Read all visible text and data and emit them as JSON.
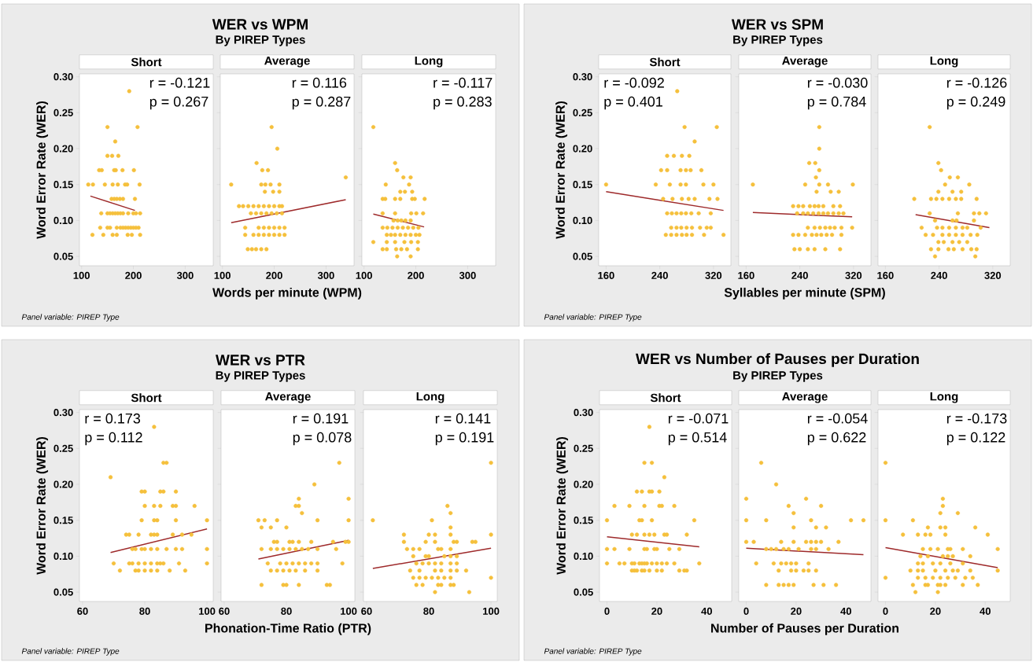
{
  "chart_data": [
    {
      "type": "scatter",
      "title": "Short",
      "ylabel": "Word Error Rate (WER)",
      "xlim": [
        96,
        354
      ],
      "ylim": [
        0.037,
        0.304
      ],
      "xticks": [
        100,
        200,
        300
      ],
      "yticks": [
        0.05,
        {
          "value": 0.1,
          "label": "0.10"
        },
        0.15,
        {
          "value": 0.2,
          "label": "0.20"
        },
        0.25,
        {
          "value": 0.3,
          "label": "0.30"
        }
      ],
      "annotations": [
        "r = -0.121",
        "p = 0.267",
        "WER vs WPM",
        "By PIREP Types",
        "Panel variable: PIREP Type"
      ],
      "series": [
        {
          "type": "scatter",
          "marker": "circle",
          "color": "#f5c03c",
          "x": [
            192,
            150,
            208,
            165,
            150,
            159,
            171,
            134,
            139,
            163,
            166,
            179,
            201,
            113,
            122,
            145,
            160,
            170,
            184,
            188,
            212,
            158,
            163,
            168,
            174,
            180,
            203,
            138,
            150,
            155,
            160,
            165,
            170,
            175,
            180,
            190,
            200,
            205,
            213,
            136,
            150,
            155,
            168,
            175,
            180,
            185,
            190,
            195,
            200,
            205,
            210,
            121,
            142,
            160,
            168,
            189,
            197,
            213
          ],
          "values": [
            0.28,
            0.23,
            0.23,
            0.21,
            0.19,
            0.19,
            0.19,
            0.17,
            0.17,
            0.17,
            0.17,
            0.17,
            0.17,
            0.15,
            0.15,
            0.15,
            0.15,
            0.15,
            0.15,
            0.15,
            0.15,
            0.13,
            0.13,
            0.13,
            0.13,
            0.13,
            0.13,
            0.11,
            0.11,
            0.11,
            0.11,
            0.11,
            0.11,
            0.11,
            0.11,
            0.11,
            0.11,
            0.11,
            0.11,
            0.09,
            0.09,
            0.09,
            0.09,
            0.09,
            0.09,
            0.09,
            0.09,
            0.09,
            0.09,
            0.09,
            0.09,
            0.08,
            0.08,
            0.08,
            0.08,
            0.08,
            0.08,
            0.08
          ]
        },
        {
          "type": "line",
          "color": "#9e2a2b",
          "x": [
            117,
            203
          ],
          "values": [
            0.134,
            0.114
          ]
        }
      ]
    },
    {
      "type": "scatter",
      "title": "Average",
      "xlabel": "Words per minute (WPM)",
      "tick_labels": "x",
      "xlim": [
        96,
        354
      ],
      "ylim": [
        0.037,
        0.304
      ],
      "xticks": [
        100,
        200,
        300
      ],
      "yticks": [
        {
          "value": 0.05,
          "label": null
        },
        {
          "value": 0.1,
          "label": null
        },
        {
          "value": 0.15,
          "label": null
        },
        {
          "value": 0.2,
          "label": null
        },
        {
          "value": 0.25,
          "label": null
        },
        {
          "value": 0.3,
          "label": null
        }
      ],
      "annotations": [
        "r = 0.116",
        "p = 0.287"
      ],
      "series": [
        {
          "type": "scatter",
          "marker": "circle",
          "color": "#f5c03c",
          "x": [
            195,
            206,
            166,
            177,
            188,
            338,
            117,
            175,
            183,
            193,
            210,
            182,
            198,
            210,
            132,
            140,
            150,
            160,
            170,
            180,
            190,
            200,
            210,
            215,
            155,
            165,
            175,
            185,
            195,
            205,
            215,
            144,
            170,
            180,
            190,
            200,
            210,
            220,
            144,
            160,
            170,
            180,
            190,
            200,
            210,
            220,
            149,
            157,
            165,
            175,
            185
          ],
          "values": [
            0.23,
            0.2,
            0.18,
            0.17,
            0.17,
            0.16,
            0.15,
            0.15,
            0.15,
            0.15,
            0.15,
            0.14,
            0.14,
            0.14,
            0.12,
            0.12,
            0.12,
            0.12,
            0.12,
            0.12,
            0.12,
            0.12,
            0.12,
            0.12,
            0.11,
            0.11,
            0.11,
            0.11,
            0.11,
            0.11,
            0.11,
            0.09,
            0.09,
            0.09,
            0.09,
            0.09,
            0.09,
            0.09,
            0.08,
            0.08,
            0.08,
            0.08,
            0.08,
            0.08,
            0.08,
            0.08,
            0.06,
            0.06,
            0.06,
            0.06,
            0.06
          ]
        },
        {
          "type": "line",
          "color": "#9e2a2b",
          "x": [
            117,
            338
          ],
          "values": [
            0.097,
            0.129
          ]
        }
      ]
    },
    {
      "type": "scatter",
      "title": "Long",
      "tick_labels": "x",
      "xlim": [
        96,
        354
      ],
      "ylim": [
        0.037,
        0.304
      ],
      "xticks": [
        100,
        200,
        300
      ],
      "yticks": [
        {
          "value": 0.05,
          "label": null
        },
        {
          "value": 0.1,
          "label": null
        },
        {
          "value": 0.15,
          "label": null
        },
        {
          "value": 0.2,
          "label": null
        },
        {
          "value": 0.25,
          "label": null
        },
        {
          "value": 0.3,
          "label": null
        }
      ],
      "annotations": [
        "r = -0.117",
        "p = 0.283"
      ],
      "series": [
        {
          "type": "scatter",
          "marker": "circle",
          "color": "#f5c03c",
          "x": [
            118,
            160,
            164,
            176,
            190,
            142,
            187,
            170,
            179,
            193,
            136,
            141,
            160,
            170,
            193,
            198,
            217,
            136,
            160,
            191,
            201,
            214,
            157,
            165,
            172,
            180,
            190,
            136,
            145,
            155,
            165,
            175,
            185,
            195,
            205,
            144,
            152,
            160,
            170,
            180,
            190,
            200,
            207,
            118,
            144,
            160,
            178,
            191,
            204,
            136,
            144,
            162,
            172,
            183,
            204,
            164,
            190
          ],
          "values": [
            0.23,
            0.18,
            0.17,
            0.16,
            0.16,
            0.15,
            0.15,
            0.14,
            0.14,
            0.14,
            0.13,
            0.13,
            0.13,
            0.13,
            0.13,
            0.13,
            0.13,
            0.11,
            0.11,
            0.11,
            0.11,
            0.11,
            0.1,
            0.1,
            0.1,
            0.1,
            0.1,
            0.09,
            0.09,
            0.09,
            0.09,
            0.09,
            0.09,
            0.09,
            0.09,
            0.08,
            0.08,
            0.08,
            0.08,
            0.08,
            0.08,
            0.08,
            0.08,
            0.07,
            0.07,
            0.07,
            0.07,
            0.07,
            0.07,
            0.06,
            0.06,
            0.06,
            0.06,
            0.06,
            0.06,
            0.05,
            0.05
          ]
        },
        {
          "type": "line",
          "color": "#9e2a2b",
          "x": [
            118,
            216
          ],
          "values": [
            0.109,
            0.091
          ]
        }
      ]
    },
    {
      "type": "scatter",
      "title": "Short",
      "ylabel": "Word Error Rate (WER)",
      "xlim": [
        149,
        346
      ],
      "ylim": [
        0.037,
        0.304
      ],
      "xticks": [
        160,
        240,
        320
      ],
      "yticks": [
        0.05,
        {
          "value": 0.1,
          "label": "0.10"
        },
        0.15,
        {
          "value": 0.2,
          "label": "0.20"
        },
        0.25,
        {
          "value": 0.3,
          "label": "0.30"
        }
      ],
      "annotations": [
        "r = -0.092",
        "p = 0.401",
        "WER vs SPM",
        "By PIREP Types",
        "Panel variable: PIREP Type"
      ],
      "series": [
        {
          "type": "scatter",
          "marker": "circle",
          "color": "#f5c03c",
          "x": [
            266,
            277,
            325,
            292,
            251,
            261,
            273,
            284,
            242,
            251,
            271,
            279,
            286,
            302,
            160,
            234,
            255,
            271,
            279,
            305,
            320,
            245,
            259,
            273,
            283,
            292,
            314,
            326,
            251,
            258,
            265,
            272,
            279,
            287,
            298,
            316,
            257,
            265,
            272,
            280,
            288,
            300,
            310,
            316,
            249,
            257,
            265,
            273,
            280,
            288,
            306,
            335
          ],
          "values": [
            0.28,
            0.23,
            0.23,
            0.21,
            0.19,
            0.19,
            0.19,
            0.19,
            0.17,
            0.17,
            0.17,
            0.17,
            0.17,
            0.17,
            0.15,
            0.15,
            0.15,
            0.15,
            0.15,
            0.15,
            0.15,
            0.13,
            0.13,
            0.13,
            0.13,
            0.13,
            0.13,
            0.13,
            0.11,
            0.11,
            0.11,
            0.11,
            0.11,
            0.11,
            0.11,
            0.11,
            0.09,
            0.09,
            0.09,
            0.09,
            0.09,
            0.09,
            0.09,
            0.09,
            0.08,
            0.08,
            0.08,
            0.08,
            0.08,
            0.08,
            0.08,
            0.08
          ]
        },
        {
          "type": "line",
          "color": "#9e2a2b",
          "x": [
            160,
            335
          ],
          "values": [
            0.14,
            0.114
          ]
        }
      ]
    },
    {
      "type": "scatter",
      "title": "Average",
      "xlabel": "Syllables per minute (SPM)",
      "tick_labels": "x",
      "xlim": [
        149,
        346
      ],
      "ylim": [
        0.037,
        0.304
      ],
      "xticks": [
        160,
        240,
        320
      ],
      "yticks": [
        {
          "value": 0.05,
          "label": null
        },
        {
          "value": 0.1,
          "label": null
        },
        {
          "value": 0.15,
          "label": null
        },
        {
          "value": 0.2,
          "label": null
        },
        {
          "value": 0.25,
          "label": null
        },
        {
          "value": 0.3,
          "label": null
        }
      ],
      "annotations": [
        "r = -0.030",
        "p = 0.784"
      ],
      "series": [
        {
          "type": "scatter",
          "marker": "circle",
          "color": "#f5c03c",
          "x": [
            269,
            269,
            254,
            263,
            269,
            264,
            170,
            248,
            269,
            282,
            319,
            265,
            286,
            298,
            230,
            238,
            245,
            255,
            262,
            268,
            275,
            290,
            300,
            236,
            245,
            252,
            260,
            268,
            275,
            282,
            290,
            298,
            305,
            252,
            262,
            270,
            278,
            285,
            292,
            302,
            318,
            230,
            238,
            248,
            258,
            265,
            272,
            280,
            288,
            302,
            232,
            240,
            252,
            262,
            278,
            300
          ],
          "values": [
            0.23,
            0.2,
            0.18,
            0.18,
            0.17,
            0.16,
            0.15,
            0.15,
            0.15,
            0.15,
            0.15,
            0.14,
            0.14,
            0.14,
            0.12,
            0.12,
            0.12,
            0.12,
            0.12,
            0.12,
            0.12,
            0.12,
            0.12,
            0.11,
            0.11,
            0.11,
            0.11,
            0.11,
            0.11,
            0.11,
            0.11,
            0.11,
            0.11,
            0.09,
            0.09,
            0.09,
            0.09,
            0.09,
            0.09,
            0.09,
            0.09,
            0.08,
            0.08,
            0.08,
            0.08,
            0.08,
            0.08,
            0.08,
            0.08,
            0.08,
            0.06,
            0.06,
            0.06,
            0.06,
            0.06,
            0.06
          ]
        },
        {
          "type": "line",
          "color": "#9e2a2b",
          "x": [
            170,
            318
          ],
          "values": [
            0.111,
            0.105
          ]
        }
      ]
    },
    {
      "type": "scatter",
      "title": "Long",
      "tick_labels": "x",
      "xlim": [
        149,
        346
      ],
      "ylim": [
        0.037,
        0.304
      ],
      "xticks": [
        160,
        240,
        320
      ],
      "yticks": [
        {
          "value": 0.05,
          "label": null
        },
        {
          "value": 0.1,
          "label": null
        },
        {
          "value": 0.15,
          "label": null
        },
        {
          "value": 0.2,
          "label": null
        },
        {
          "value": 0.25,
          "label": null
        },
        {
          "value": 0.3,
          "label": null
        }
      ],
      "annotations": [
        "r = -0.126",
        "p = 0.249"
      ],
      "series": [
        {
          "type": "scatter",
          "marker": "circle",
          "color": "#f5c03c",
          "x": [
            226,
            239,
            243,
            256,
            268,
            249,
            285,
            239,
            260,
            273,
            203,
            228,
            236,
            245,
            255,
            265,
            273,
            296,
            226,
            268,
            292,
            300,
            310,
            234,
            260,
            266,
            292,
            214,
            237,
            245,
            255,
            265,
            275,
            282,
            302,
            220,
            231,
            245,
            255,
            265,
            275,
            287,
            297,
            239,
            247,
            260,
            270,
            282,
            228,
            239,
            254,
            262,
            275,
            288,
            296,
            234,
            294
          ],
          "values": [
            0.23,
            0.18,
            0.17,
            0.16,
            0.16,
            0.15,
            0.15,
            0.14,
            0.14,
            0.14,
            0.13,
            0.13,
            0.13,
            0.13,
            0.13,
            0.13,
            0.13,
            0.13,
            0.11,
            0.11,
            0.11,
            0.11,
            0.11,
            0.1,
            0.1,
            0.1,
            0.1,
            0.09,
            0.09,
            0.09,
            0.09,
            0.09,
            0.09,
            0.09,
            0.09,
            0.08,
            0.08,
            0.08,
            0.08,
            0.08,
            0.08,
            0.08,
            0.08,
            0.07,
            0.07,
            0.07,
            0.07,
            0.07,
            0.06,
            0.06,
            0.06,
            0.06,
            0.06,
            0.06,
            0.06,
            0.05,
            0.05
          ]
        },
        {
          "type": "line",
          "color": "#9e2a2b",
          "x": [
            205,
            315
          ],
          "values": [
            0.108,
            0.09
          ]
        }
      ]
    },
    {
      "type": "scatter",
      "title": "Short",
      "ylabel": "Word Error Rate (WER)",
      "xlim": [
        59,
        102
      ],
      "ylim": [
        0.037,
        0.304
      ],
      "xticks": [
        60,
        80,
        100
      ],
      "yticks": [
        0.05,
        {
          "value": 0.1,
          "label": "0.10"
        },
        0.15,
        {
          "value": 0.2,
          "label": "0.20"
        },
        0.25,
        {
          "value": 0.3,
          "label": "0.30"
        }
      ],
      "annotations": [
        "r = 0.173",
        "p = 0.112",
        "WER vs PTR",
        "By PIREP Types",
        "Panel variable: PIREP Type"
      ],
      "series": [
        {
          "type": "scatter",
          "marker": "circle",
          "color": "#f5c03c",
          "x": [
            83,
            86,
            87,
            69,
            79,
            80,
            85,
            86,
            90,
            80,
            83,
            85,
            89,
            90,
            96,
            79,
            83,
            84,
            90,
            100,
            74,
            75,
            78,
            82,
            83,
            84,
            89,
            92,
            95,
            76,
            77,
            79,
            80,
            82,
            84,
            87,
            90,
            92,
            100,
            70,
            75,
            76,
            78,
            80,
            82,
            84,
            85,
            86,
            91,
            100,
            72,
            77,
            78,
            80,
            82,
            84,
            88,
            93
          ],
          "values": [
            0.28,
            0.23,
            0.23,
            0.21,
            0.19,
            0.19,
            0.19,
            0.19,
            0.19,
            0.17,
            0.17,
            0.17,
            0.17,
            0.17,
            0.17,
            0.15,
            0.15,
            0.15,
            0.15,
            0.15,
            0.13,
            0.13,
            0.13,
            0.13,
            0.13,
            0.13,
            0.13,
            0.13,
            0.13,
            0.11,
            0.11,
            0.11,
            0.11,
            0.11,
            0.11,
            0.11,
            0.11,
            0.11,
            0.11,
            0.09,
            0.09,
            0.09,
            0.09,
            0.09,
            0.09,
            0.09,
            0.09,
            0.09,
            0.09,
            0.09,
            0.08,
            0.08,
            0.08,
            0.08,
            0.08,
            0.08,
            0.08,
            0.08
          ]
        },
        {
          "type": "line",
          "color": "#9e2a2b",
          "x": [
            69,
            100
          ],
          "values": [
            0.105,
            0.138
          ]
        }
      ]
    },
    {
      "type": "scatter",
      "title": "Average",
      "xlabel": "Phonation-Time Ratio (PTR)",
      "tick_labels": "x",
      "xlim": [
        59,
        102
      ],
      "ylim": [
        0.037,
        0.304
      ],
      "xticks": [
        60,
        80,
        100
      ],
      "yticks": [
        {
          "value": 0.05,
          "label": null
        },
        {
          "value": 0.1,
          "label": null
        },
        {
          "value": 0.15,
          "label": null
        },
        {
          "value": 0.2,
          "label": null
        },
        {
          "value": 0.25,
          "label": null
        },
        {
          "value": 0.3,
          "label": null
        }
      ],
      "annotations": [
        "r = 0.191",
        "p = 0.078"
      ],
      "series": [
        {
          "type": "scatter",
          "marker": "circle",
          "color": "#f5c03c",
          "x": [
            97,
            89,
            84,
            100,
            83,
            84,
            85,
            71,
            73,
            77,
            90,
            100,
            72,
            75,
            80,
            76,
            77,
            81,
            82,
            84,
            88,
            95,
            99,
            100,
            72,
            75,
            77,
            79,
            81,
            83,
            85,
            87,
            90,
            96,
            74,
            78,
            80,
            82,
            84,
            86,
            88,
            90,
            98,
            75,
            77,
            79,
            81,
            83,
            86,
            90,
            72,
            79,
            80,
            84,
            93,
            94
          ],
          "values": [
            0.23,
            0.2,
            0.18,
            0.18,
            0.17,
            0.17,
            0.16,
            0.15,
            0.15,
            0.15,
            0.15,
            0.15,
            0.14,
            0.14,
            0.14,
            0.12,
            0.12,
            0.12,
            0.12,
            0.12,
            0.12,
            0.12,
            0.12,
            0.12,
            0.11,
            0.11,
            0.11,
            0.11,
            0.11,
            0.11,
            0.11,
            0.11,
            0.11,
            0.11,
            0.09,
            0.09,
            0.09,
            0.09,
            0.09,
            0.09,
            0.09,
            0.09,
            0.09,
            0.08,
            0.08,
            0.08,
            0.08,
            0.08,
            0.08,
            0.08,
            0.06,
            0.06,
            0.06,
            0.06,
            0.06,
            0.06
          ]
        },
        {
          "type": "line",
          "color": "#9e2a2b",
          "x": [
            71,
            100
          ],
          "values": [
            0.096,
            0.122
          ]
        }
      ]
    },
    {
      "type": "scatter",
      "title": "Long",
      "tick_labels": "x",
      "xlim": [
        59,
        102
      ],
      "ylim": [
        0.037,
        0.304
      ],
      "xticks": [
        60,
        80,
        100
      ],
      "yticks": [
        {
          "value": 0.05,
          "label": null
        },
        {
          "value": 0.1,
          "label": null
        },
        {
          "value": 0.15,
          "label": null
        },
        {
          "value": 0.2,
          "label": null
        },
        {
          "value": 0.25,
          "label": null
        },
        {
          "value": 0.3,
          "label": null
        }
      ],
      "annotations": [
        "r = 0.141",
        "p = 0.191"
      ],
      "series": [
        {
          "type": "scatter",
          "marker": "circle",
          "color": "#f5c03c",
          "x": [
            100,
            86,
            87,
            62,
            81,
            87,
            72,
            80,
            82,
            87,
            100,
            72,
            79,
            82,
            88,
            89,
            94,
            95,
            73,
            75,
            77,
            83,
            84,
            87,
            75,
            79,
            80,
            85,
            87,
            89,
            76,
            78,
            80,
            82,
            84,
            87,
            89,
            74,
            77,
            82,
            84,
            87,
            89,
            92,
            75,
            77,
            79,
            81,
            83,
            85,
            87,
            100,
            76,
            78,
            83,
            84,
            87,
            88,
            82,
            93
          ],
          "values": [
            0.23,
            0.17,
            0.16,
            0.15,
            0.15,
            0.14,
            0.13,
            0.13,
            0.13,
            0.13,
            0.13,
            0.12,
            0.12,
            0.12,
            0.12,
            0.12,
            0.12,
            0.12,
            0.11,
            0.11,
            0.11,
            0.11,
            0.11,
            0.11,
            0.1,
            0.1,
            0.1,
            0.1,
            0.1,
            0.1,
            0.09,
            0.09,
            0.09,
            0.09,
            0.09,
            0.09,
            0.09,
            0.08,
            0.08,
            0.08,
            0.08,
            0.08,
            0.08,
            0.08,
            0.07,
            0.07,
            0.07,
            0.07,
            0.07,
            0.07,
            0.07,
            0.07,
            0.06,
            0.06,
            0.06,
            0.06,
            0.06,
            0.06,
            0.05,
            0.05
          ]
        },
        {
          "type": "line",
          "color": "#9e2a2b",
          "x": [
            62,
            100
          ],
          "values": [
            0.083,
            0.111
          ]
        }
      ]
    },
    {
      "type": "scatter",
      "title": "Short",
      "ylabel": "Word Error Rate (WER)",
      "xlim": [
        -3,
        50
      ],
      "ylim": [
        0.037,
        0.304
      ],
      "xticks": [
        0,
        20,
        40
      ],
      "yticks": [
        0.05,
        {
          "value": 0.1,
          "label": "0.10"
        },
        0.15,
        {
          "value": 0.2,
          "label": "0.20"
        },
        0.25,
        {
          "value": 0.3,
          "label": "0.30"
        }
      ],
      "annotations": [
        "r = -0.071",
        "p = 0.514",
        "WER vs Number of Pauses per Duration",
        "By PIREP Types",
        "Panel variable: PIREP Type"
      ],
      "series": [
        {
          "type": "scatter",
          "marker": "circle",
          "color": "#f5c03c",
          "x": [
            17,
            15,
            18,
            23,
            12,
            14,
            17,
            18,
            21,
            3,
            9,
            15,
            21,
            22,
            27,
            0,
            13,
            14,
            18,
            35,
            10,
            12,
            15,
            17,
            19,
            23,
            24,
            32,
            0,
            3,
            9,
            15,
            16,
            19,
            20,
            25,
            29,
            0,
            5,
            7,
            10,
            11,
            13,
            14,
            15,
            16,
            18,
            20,
            22,
            24,
            27,
            37,
            10,
            11,
            12,
            14,
            15,
            17,
            20,
            22,
            29,
            31,
            32
          ],
          "values": [
            0.28,
            0.23,
            0.23,
            0.21,
            0.19,
            0.19,
            0.19,
            0.19,
            0.19,
            0.17,
            0.17,
            0.17,
            0.17,
            0.17,
            0.17,
            0.15,
            0.15,
            0.15,
            0.15,
            0.15,
            0.13,
            0.13,
            0.13,
            0.13,
            0.13,
            0.13,
            0.13,
            0.13,
            0.11,
            0.11,
            0.11,
            0.11,
            0.11,
            0.11,
            0.11,
            0.11,
            0.11,
            0.09,
            0.09,
            0.09,
            0.09,
            0.09,
            0.09,
            0.09,
            0.09,
            0.09,
            0.09,
            0.09,
            0.09,
            0.09,
            0.09,
            0.09,
            0.08,
            0.08,
            0.08,
            0.08,
            0.08,
            0.08,
            0.08,
            0.08,
            0.08,
            0.08,
            0.08
          ]
        },
        {
          "type": "line",
          "color": "#9e2a2b",
          "x": [
            0,
            37
          ],
          "values": [
            0.127,
            0.113
          ]
        }
      ]
    },
    {
      "type": "scatter",
      "title": "Average",
      "xlabel": "Number of Pauses per Duration",
      "tick_labels": "x",
      "xlim": [
        -3,
        50
      ],
      "ylim": [
        0.037,
        0.304
      ],
      "xticks": [
        0,
        20,
        40
      ],
      "yticks": [
        {
          "value": 0.05,
          "label": null
        },
        {
          "value": 0.1,
          "label": null
        },
        {
          "value": 0.15,
          "label": null
        },
        {
          "value": 0.2,
          "label": null
        },
        {
          "value": 0.25,
          "label": null
        },
        {
          "value": 0.3,
          "label": null
        }
      ],
      "annotations": [
        "r = -0.054",
        "p = 0.622"
      ],
      "series": [
        {
          "type": "scatter",
          "marker": "circle",
          "color": "#f5c03c",
          "x": [
            6,
            12,
            0,
            24,
            17,
            30,
            19,
            0,
            8,
            26,
            42,
            47,
            19,
            28,
            32,
            0,
            3,
            14,
            19,
            24,
            26,
            28,
            30,
            37,
            8,
            10,
            12,
            15,
            17,
            21,
            26,
            28,
            33,
            4,
            11,
            14,
            16,
            18,
            20,
            25,
            13,
            18,
            20,
            23,
            25,
            28,
            8,
            13,
            15,
            17,
            19,
            27,
            31,
            36
          ],
          "values": [
            0.23,
            0.2,
            0.18,
            0.18,
            0.17,
            0.17,
            0.16,
            0.15,
            0.15,
            0.15,
            0.15,
            0.15,
            0.14,
            0.14,
            0.14,
            0.12,
            0.12,
            0.12,
            0.12,
            0.12,
            0.12,
            0.12,
            0.12,
            0.12,
            0.11,
            0.11,
            0.11,
            0.11,
            0.11,
            0.11,
            0.11,
            0.11,
            0.11,
            0.09,
            0.09,
            0.09,
            0.09,
            0.09,
            0.09,
            0.09,
            0.08,
            0.08,
            0.08,
            0.08,
            0.08,
            0.08,
            0.06,
            0.06,
            0.06,
            0.06,
            0.06,
            0.06,
            0.06,
            0.06
          ]
        },
        {
          "type": "line",
          "color": "#9e2a2b",
          "x": [
            0,
            47
          ],
          "values": [
            0.111,
            0.102
          ]
        }
      ]
    },
    {
      "type": "scatter",
      "title": "Long",
      "tick_labels": "x",
      "xlim": [
        -3,
        50
      ],
      "ylim": [
        0.037,
        0.304
      ],
      "xticks": [
        0,
        20,
        40
      ],
      "yticks": [
        {
          "value": 0.05,
          "label": null
        },
        {
          "value": 0.1,
          "label": null
        },
        {
          "value": 0.15,
          "label": null
        },
        {
          "value": 0.2,
          "label": null
        },
        {
          "value": 0.25,
          "label": null
        },
        {
          "value": 0.3,
          "label": null
        }
      ],
      "annotations": [
        "r = -0.173",
        "p = 0.122"
      ],
      "series": [
        {
          "type": "scatter",
          "marker": "circle",
          "color": "#f5c03c",
          "x": [
            0,
            23,
            23,
            22,
            29,
            0,
            11,
            17,
            22,
            24,
            36,
            7,
            13,
            16,
            18,
            24,
            41,
            15,
            18,
            21,
            25,
            26,
            31,
            45,
            14,
            17,
            23,
            25,
            27,
            34,
            13,
            15,
            19,
            22,
            26,
            31,
            10,
            13,
            15,
            20,
            24,
            27,
            29,
            34,
            45,
            0,
            13,
            16,
            19,
            22,
            25,
            28,
            32,
            35,
            11,
            16,
            17,
            21,
            22,
            24,
            31,
            37,
            12,
            21
          ],
          "values": [
            0.23,
            0.18,
            0.17,
            0.16,
            0.16,
            0.15,
            0.15,
            0.14,
            0.14,
            0.14,
            0.14,
            0.13,
            0.13,
            0.13,
            0.13,
            0.13,
            0.13,
            0.11,
            0.11,
            0.11,
            0.11,
            0.11,
            0.11,
            0.11,
            0.1,
            0.1,
            0.1,
            0.1,
            0.1,
            0.1,
            0.09,
            0.09,
            0.09,
            0.09,
            0.09,
            0.09,
            0.08,
            0.08,
            0.08,
            0.08,
            0.08,
            0.08,
            0.08,
            0.08,
            0.08,
            0.07,
            0.07,
            0.07,
            0.07,
            0.07,
            0.07,
            0.07,
            0.07,
            0.07,
            0.06,
            0.06,
            0.06,
            0.06,
            0.06,
            0.06,
            0.06,
            0.06,
            0.05,
            0.05
          ]
        },
        {
          "type": "line",
          "color": "#9e2a2b",
          "x": [
            0,
            45
          ],
          "values": [
            0.112,
            0.084
          ]
        }
      ]
    }
  ]
}
